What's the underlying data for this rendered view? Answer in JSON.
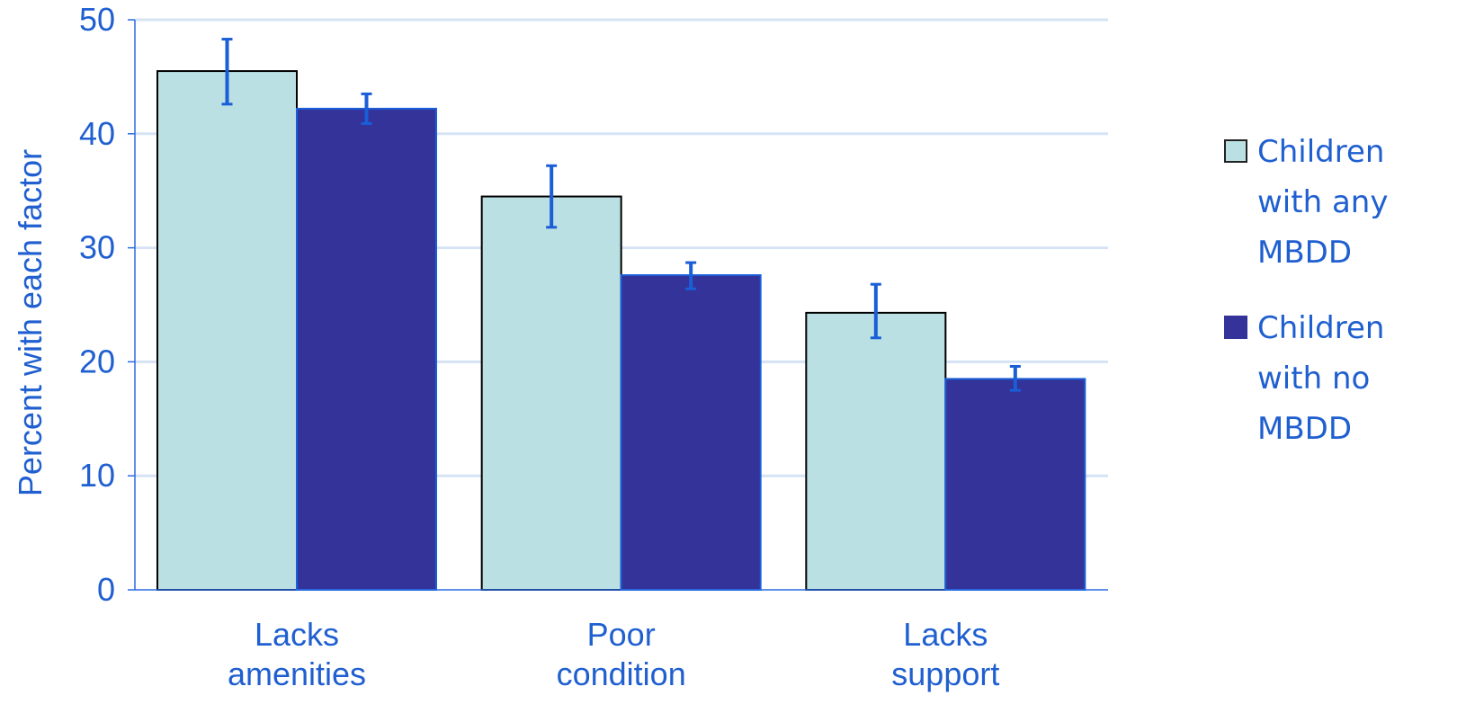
{
  "colors": {
    "text": "#1f5fd0",
    "grid": "#d6e3f5",
    "axis": "#2a6be0",
    "series_any": "#bbe0e3",
    "series_no": "#333399",
    "error_bar": "#1a5ed8",
    "bar_outline_any": "#000000"
  },
  "chart_data": {
    "type": "bar",
    "title": "",
    "xlabel": "",
    "ylabel": "Percent with each factor",
    "ylim": [
      0,
      50
    ],
    "yticks": [
      "0",
      "10",
      "20",
      "30",
      "40",
      "50"
    ],
    "grid": true,
    "legend_position": "right",
    "categories": [
      [
        "Lacks",
        "amenities"
      ],
      [
        "Poor",
        "condition"
      ],
      [
        "Lacks",
        "support"
      ]
    ],
    "series": [
      {
        "name": "Children with any MBDD",
        "legend_lines": [
          "Children",
          "with any",
          "MBDD"
        ],
        "values": [
          45.5,
          34.5,
          24.3
        ],
        "error_low": [
          42.6,
          31.8,
          22.1
        ],
        "error_high": [
          48.3,
          37.2,
          26.8
        ]
      },
      {
        "name": "Children with no MBDD",
        "legend_lines": [
          "Children",
          "with no",
          "MBDD"
        ],
        "values": [
          42.2,
          27.6,
          18.5
        ],
        "error_low": [
          40.9,
          26.4,
          17.5
        ],
        "error_high": [
          43.5,
          28.7,
          19.6
        ]
      }
    ]
  }
}
